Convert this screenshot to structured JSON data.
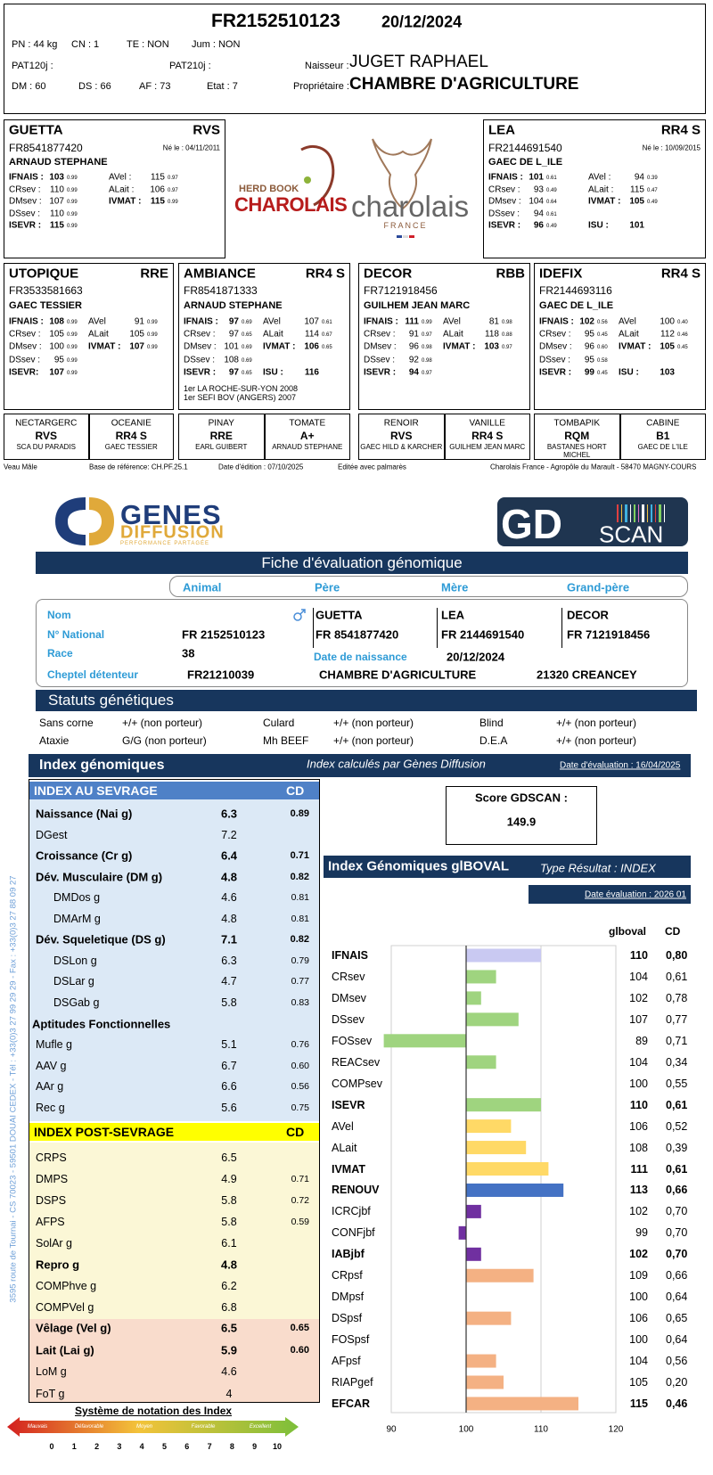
{
  "header": {
    "id": "FR2152510123",
    "date": "20/12/2024",
    "pn": "PN : 44 kg",
    "cn": "CN : 1",
    "te": "TE : NON",
    "jum": "Jum : NON",
    "pat120": "PAT120j :",
    "pat210": "PAT210j :",
    "breeder_label": "Naisseur :",
    "breeder": "JUGET RAPHAEL",
    "dm": "DM : 60",
    "ds": "DS : 66",
    "af": "AF : 73",
    "etat": "Etat : 7",
    "owner_label": "Propriétaire :",
    "owner": "CHAMBRE D'AGRICULTURE"
  },
  "logo": {
    "herd_book": "HERD BOOK",
    "charolais_red": "CHAROLAIS",
    "charolais": "charolais",
    "france": "FRANCE"
  },
  "parents": [
    {
      "name": "GUETTA",
      "code": "RVS",
      "id": "FR8541877420",
      "born": "Né le : 04/11/2011",
      "owner": "ARNAUD STEPHANE",
      "left": [
        {
          "l": "IFNAIS :",
          "v": "103",
          "c": "0.99",
          "b": true
        },
        {
          "l": "CRsev :",
          "v": "110",
          "c": "0.99"
        },
        {
          "l": "DMsev :",
          "v": "107",
          "c": "0.99"
        },
        {
          "l": "DSsev :",
          "v": "110",
          "c": "0.99"
        },
        {
          "l": "ISEVR :",
          "v": "115",
          "c": "0.99",
          "b": true
        }
      ],
      "right": [
        {
          "l": "AVel :",
          "v": "115",
          "c": "0.97"
        },
        {
          "l": "ALait :",
          "v": "106",
          "c": "0.97"
        },
        {
          "l": "IVMAT :",
          "v": "115",
          "c": "0.99",
          "b": true
        }
      ]
    },
    {
      "name": "LEA",
      "code": "RR4 S",
      "id": "FR2144691540",
      "born": "Né le : 10/09/2015",
      "owner": "GAEC DE L_ILE",
      "left": [
        {
          "l": "IFNAIS :",
          "v": "101",
          "c": "0.61",
          "b": true
        },
        {
          "l": "CRsev :",
          "v": "93",
          "c": "0.49"
        },
        {
          "l": "DMsev :",
          "v": "104",
          "c": "0.64"
        },
        {
          "l": "DSsev :",
          "v": "94",
          "c": "0.61"
        },
        {
          "l": "ISEVR :",
          "v": "96",
          "c": "0.49",
          "b": true
        }
      ],
      "right": [
        {
          "l": "AVel :",
          "v": "94",
          "c": "0.39"
        },
        {
          "l": "ALait :",
          "v": "115",
          "c": "0.47"
        },
        {
          "l": "IVMAT :",
          "v": "105",
          "c": "0.49",
          "b": true
        },
        {
          "l": "ISU :",
          "v": "101",
          "b": true
        }
      ]
    }
  ],
  "grandparents": [
    {
      "name": "UTOPIQUE",
      "code": "RRE",
      "id": "FR3533581663",
      "owner": "GAEC TESSIER",
      "left": [
        {
          "l": "IFNAIS :",
          "v": "108",
          "c": "0.99",
          "b": true
        },
        {
          "l": "CRsev :",
          "v": "105",
          "c": "0.99"
        },
        {
          "l": "DMsev :",
          "v": "100",
          "c": "0.99"
        },
        {
          "l": "DSsev :",
          "v": "95",
          "c": "0.99"
        },
        {
          "l": "ISEVR:",
          "v": "107",
          "c": "0.99",
          "b": true
        }
      ],
      "right": [
        {
          "l": "AVel",
          "v": "91",
          "c": "0.99"
        },
        {
          "l": "ALait",
          "v": "105",
          "c": "0.99"
        },
        {
          "l": "IVMAT :",
          "v": "107",
          "c": "0.99",
          "b": true
        }
      ]
    },
    {
      "name": "AMBIANCE",
      "code": "RR4 S",
      "id": "FR8541871333",
      "owner": "ARNAUD STEPHANE",
      "left": [
        {
          "l": "IFNAIS :",
          "v": "97",
          "c": "0.69",
          "b": true
        },
        {
          "l": "CRsev :",
          "v": "97",
          "c": "0.65"
        },
        {
          "l": "DMsev :",
          "v": "101",
          "c": "0.69"
        },
        {
          "l": "DSsev :",
          "v": "108",
          "c": "0.69"
        },
        {
          "l": "ISEVR :",
          "v": "97",
          "c": "0.65",
          "b": true
        }
      ],
      "right": [
        {
          "l": "AVel",
          "v": "107",
          "c": "0.61"
        },
        {
          "l": "ALait",
          "v": "114",
          "c": "0.67"
        },
        {
          "l": "IVMAT :",
          "v": "106",
          "c": "0.65",
          "b": true
        },
        {
          "l": "ISU :",
          "v": "116",
          "b": true
        }
      ],
      "awards": [
        "1er  LA ROCHE-SUR-YON 2008",
        "1er  SEFI BOV (ANGERS) 2007"
      ]
    },
    {
      "name": "DECOR",
      "code": "RBB",
      "id": "FR7121918456",
      "owner": "GUILHEM JEAN MARC",
      "left": [
        {
          "l": "IFNAIS :",
          "v": "111",
          "c": "0.99",
          "b": true
        },
        {
          "l": "CRsev :",
          "v": "91",
          "c": "0.97"
        },
        {
          "l": "DMsev :",
          "v": "96",
          "c": "0.98"
        },
        {
          "l": "DSsev :",
          "v": "92",
          "c": "0.98"
        },
        {
          "l": "ISEVR :",
          "v": "94",
          "c": "0.97",
          "b": true
        }
      ],
      "right": [
        {
          "l": "AVel",
          "v": "81",
          "c": "0.98"
        },
        {
          "l": "ALait",
          "v": "118",
          "c": "0.88"
        },
        {
          "l": "IVMAT :",
          "v": "103",
          "c": "0.97",
          "b": true
        }
      ]
    },
    {
      "name": "IDEFIX",
      "code": "RR4 S",
      "id": "FR2144693116",
      "owner": "GAEC DE L_ILE",
      "left": [
        {
          "l": "IFNAIS :",
          "v": "102",
          "c": "0.56",
          "b": true
        },
        {
          "l": "CRsev :",
          "v": "95",
          "c": "0.45"
        },
        {
          "l": "DMsev :",
          "v": "96",
          "c": "0.60"
        },
        {
          "l": "DSsev :",
          "v": "95",
          "c": "0.58"
        },
        {
          "l": "ISEVR :",
          "v": "99",
          "c": "0.45",
          "b": true
        }
      ],
      "right": [
        {
          "l": "AVel",
          "v": "100",
          "c": "0.40"
        },
        {
          "l": "ALait",
          "v": "112",
          "c": "0.46"
        },
        {
          "l": "IVMAT :",
          "v": "105",
          "c": "0.45",
          "b": true
        },
        {
          "l": "ISU :",
          "v": "103",
          "b": true
        }
      ]
    }
  ],
  "great_grandparents": [
    {
      "name": "NECTARGERC",
      "code": "RVS",
      "owner": "SCA DU PARADIS"
    },
    {
      "name": "OCEANIE",
      "code": "RR4 S",
      "owner": "GAEC TESSIER"
    },
    {
      "name": "PINAY",
      "code": "RRE",
      "owner": "EARL GUIBERT"
    },
    {
      "name": "TOMATE",
      "code": "A+",
      "owner": "ARNAUD STEPHANE"
    },
    {
      "name": "RENOIR",
      "code": "RVS",
      "owner": "GAEC HILD & KARCHER"
    },
    {
      "name": "VANILLE",
      "code": "RR4 S",
      "owner": "GUILHEM JEAN MARC"
    },
    {
      "name": "TOMBAPIK",
      "code": "RQM",
      "owner": "BASTANES HORT MICHEL"
    },
    {
      "name": "CABINE",
      "code": "B1",
      "owner": "GAEC DE L'ILE"
    }
  ],
  "footer": [
    "Veau Mâle",
    "Base de référence: CH.PF.25.1",
    "Date d'édition : 07/10/2025",
    "Editée avec palmarès",
    "Charolais France - Agropôle du Marault - 58470 MAGNY-COURS"
  ],
  "gd": {
    "genes": "GENES",
    "diffusion": "DIFFUSION",
    "tagline": "PERFORMANCE PARTAGÉE",
    "gd": "GD",
    "scan": "SCAN",
    "title": "Fiche d'évaluation génomique",
    "columns": [
      "Animal",
      "Père",
      "Mère",
      "Grand-père"
    ],
    "labels": [
      "Nom",
      "N° National",
      "Race",
      "Cheptel détenteur"
    ],
    "names": [
      "GUETTA",
      "LEA",
      "DECOR"
    ],
    "ids": [
      "FR 2152510123",
      "FR 8541877420",
      "FR 2144691540",
      "FR 7121918456"
    ],
    "race": "38",
    "birth_label": "Date de naissance",
    "birth": "20/12/2024",
    "herd": "FR21210039",
    "holder": "CHAMBRE D'AGRICULTURE",
    "place": "21320 CREANCEY"
  },
  "statuses": {
    "title": "Statuts génétiques",
    "items": [
      [
        "Sans corne",
        "+/+ (non porteur)"
      ],
      [
        "Culard",
        "+/+ (non porteur)"
      ],
      [
        "Blind",
        "+/+ (non porteur)"
      ],
      [
        "Ataxie",
        "G/G (non porteur)"
      ],
      [
        "Mh BEEF",
        "+/+ (non porteur)"
      ],
      [
        "D.E.A",
        "+/+ (non porteur)"
      ]
    ]
  },
  "index": {
    "title": "Index génomiques",
    "note": "Index calculés par Gènes Diffusion",
    "date": "Date d'évaluation : 16/04/2025",
    "sections": [
      {
        "title": "INDEX AU SEVRAGE",
        "cd": "CD",
        "header_color": "#4f81c7",
        "color": "#dce9f6",
        "rows": [
          {
            "l": "Naissance (Nai g)",
            "v": "6.3",
            "c": "0.89",
            "b": true
          },
          {
            "l": "DGest",
            "v": "7.2"
          },
          {
            "l": "Croissance (Cr g)",
            "v": "6.4",
            "c": "0.71",
            "b": true
          },
          {
            "l": "Dév. Musculaire (DM g)",
            "v": "4.8",
            "c": "0.82",
            "b": true
          },
          {
            "l": "DMDos g",
            "v": "4.6",
            "c": "0.81",
            "i": true
          },
          {
            "l": "DMArM g",
            "v": "4.8",
            "c": "0.81",
            "i": true
          },
          {
            "l": "Dév. Squeletique (DS g)",
            "v": "7.1",
            "c": "0.82",
            "b": true
          },
          {
            "l": "DSLon g",
            "v": "6.3",
            "c": "0.79",
            "i": true
          },
          {
            "l": "DSLar g",
            "v": "4.7",
            "c": "0.77",
            "i": true
          },
          {
            "l": "DSGab g",
            "v": "5.8",
            "c": "0.83",
            "i": true
          },
          {
            "l": "Aptitudes Fonctionnelles",
            "b": true
          },
          {
            "l": "Mufle g",
            "v": "5.1",
            "c": "0.76"
          },
          {
            "l": "AAV g",
            "v": "6.7",
            "c": "0.60"
          },
          {
            "l": "AAr g",
            "v": "6.6",
            "c": "0.56"
          },
          {
            "l": "Rec g",
            "v": "5.6",
            "c": "0.75"
          }
        ]
      },
      {
        "title": "INDEX POST-SEVRAGE",
        "cd": "CD",
        "header_color": "#ffff00",
        "color": "#fbf7d6",
        "rows": [
          {
            "l": "CRPS",
            "v": "6.5"
          },
          {
            "l": "DMPS",
            "v": "4.9",
            "c": "0.71"
          },
          {
            "l": "DSPS",
            "v": "5.8",
            "c": "0.72"
          },
          {
            "l": "AFPS",
            "v": "5.8",
            "c": "0.59"
          },
          {
            "l": "SolAr g",
            "v": "6.1"
          },
          {
            "l": "Repro g",
            "v": "4.8",
            "b": true
          },
          {
            "l": "COMPhve g",
            "v": "6.2"
          },
          {
            "l": "COMPVel g",
            "v": "6.8"
          }
        ]
      },
      {
        "color": "#f9dccc",
        "rows": [
          {
            "l": "Vêlage (Vel g)",
            "v": "6.5",
            "c": "0.65",
            "b": true
          },
          {
            "l": "Lait (Lai g)",
            "v": "5.9",
            "c": "0.60",
            "b": true
          },
          {
            "l": "LoM g",
            "v": "4.6"
          },
          {
            "l": "FoT g",
            "v": "4"
          }
        ]
      }
    ],
    "score_label": "Score GDSCAN :",
    "score": "149.9",
    "scale": {
      "title": "Système de notation des Index",
      "labels": [
        "Mauvais",
        "Défavorable",
        "Moyen",
        "Favorable",
        "Excellent"
      ],
      "numbers": [
        0,
        1,
        2,
        3,
        4,
        5,
        6,
        7,
        8,
        9,
        10
      ]
    }
  },
  "address": "3595 route de Tournai - CS 70023 - 59501 DOUAI CEDEX - Tél : +33(0)3 27 99 29 29 - Fax : +33(0)3 27 88 09 27",
  "chart_data": {
    "type": "bar",
    "orientation": "horizontal",
    "title": "Index Génomiques glBOVAL",
    "subtitle": "Type Résultat : INDEX",
    "date_label": "Date évaluation : 2026 01",
    "value_header": "glboval",
    "cd_header": "CD",
    "categories": [
      "IFNAIS",
      "CRsev",
      "DMsev",
      "DSsev",
      "FOSsev",
      "REACsev",
      "COMPsev",
      "ISEVR",
      "AVel",
      "ALait",
      "IVMAT",
      "RENOUV",
      "ICRCjbf",
      "CONFjbf",
      "IABjbf",
      "CRpsf",
      "DMpsf",
      "DSpsf",
      "FOSpsf",
      "AFpsf",
      "RIAPgef",
      "EFCAR"
    ],
    "values": [
      110,
      104,
      102,
      107,
      89,
      104,
      100,
      110,
      106,
      108,
      111,
      113,
      102,
      99,
      102,
      109,
      100,
      106,
      100,
      104,
      105,
      115
    ],
    "cd": [
      "0,80",
      "0,61",
      "0,78",
      "0,77",
      "0,71",
      "0,34",
      "0,55",
      "0,61",
      "0,52",
      "0,39",
      "0,61",
      "0,66",
      "0,70",
      "0,70",
      "0,70",
      "0,66",
      "0,64",
      "0,65",
      "0,64",
      "0,56",
      "0,20",
      "0,46"
    ],
    "bold": [
      true,
      false,
      false,
      false,
      false,
      false,
      false,
      true,
      false,
      false,
      true,
      true,
      false,
      false,
      true,
      false,
      false,
      false,
      false,
      false,
      false,
      true
    ],
    "colors": [
      "#c9c9f2",
      "#9fd47f",
      "#9fd47f",
      "#9fd47f",
      "#9fd47f",
      "#9fd47f",
      "#9fd47f",
      "#9fd47f",
      "#ffd966",
      "#ffd966",
      "#ffd966",
      "#4472c4",
      "#7030a0",
      "#7030a0",
      "#7030a0",
      "#f4b183",
      "#f4b183",
      "#f4b183",
      "#f4b183",
      "#f4b183",
      "#f4b183",
      "#f4b183"
    ],
    "baseline": 100,
    "xlim": [
      90,
      120
    ],
    "xticks": [
      90,
      100,
      110,
      120
    ],
    "grid": true
  }
}
